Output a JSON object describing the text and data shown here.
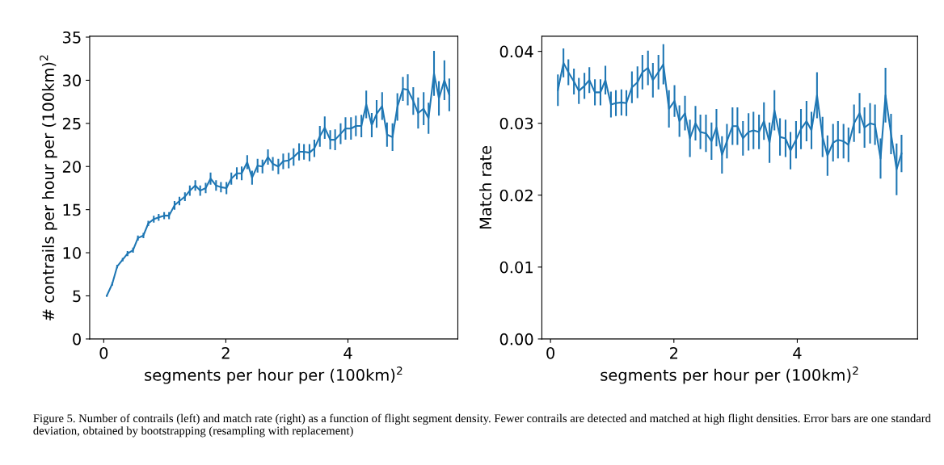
{
  "chart_data": [
    {
      "type": "line",
      "xlabel": "segments per hour per (100km)$^{2}$",
      "ylabel": "# contrails per hour per (100km)$^{2}$",
      "xlim": [
        -0.23,
        5.8
      ],
      "ylim": [
        0,
        35.1
      ],
      "xticks": [
        0,
        2,
        4
      ],
      "yticks": [
        0,
        5,
        10,
        15,
        20,
        25,
        30,
        35
      ],
      "grid": false,
      "marker": "none",
      "line_style": "solid",
      "series": [
        {
          "color": "#1f77b4",
          "x": [
            0.05,
            0.14,
            0.22,
            0.31,
            0.39,
            0.48,
            0.56,
            0.65,
            0.73,
            0.82,
            0.9,
            0.99,
            1.07,
            1.16,
            1.24,
            1.33,
            1.41,
            1.5,
            1.58,
            1.67,
            1.75,
            1.84,
            1.92,
            2.01,
            2.09,
            2.18,
            2.26,
            2.35,
            2.43,
            2.52,
            2.6,
            2.69,
            2.77,
            2.86,
            2.94,
            3.03,
            3.11,
            3.2,
            3.28,
            3.37,
            3.45,
            3.54,
            3.62,
            3.71,
            3.79,
            3.88,
            3.96,
            4.05,
            4.13,
            4.22,
            4.3,
            4.39,
            4.47,
            4.56,
            4.64,
            4.73,
            4.81,
            4.9,
            4.98,
            5.07,
            5.15,
            5.24,
            5.32,
            5.41,
            5.49,
            5.58,
            5.66
          ],
          "values": [
            5.0,
            6.4,
            8.4,
            9.2,
            9.9,
            10.3,
            11.7,
            12.0,
            13.4,
            13.9,
            14.1,
            14.3,
            14.3,
            15.5,
            16.0,
            16.5,
            17.2,
            17.8,
            17.2,
            17.5,
            18.6,
            17.8,
            17.6,
            17.5,
            18.6,
            19.2,
            19.2,
            20.5,
            18.7,
            20.1,
            20.0,
            21.1,
            20.3,
            20.0,
            20.6,
            20.7,
            21.1,
            21.7,
            21.7,
            21.6,
            22.1,
            23.5,
            24.5,
            23.1,
            23.1,
            23.8,
            24.4,
            24.4,
            24.7,
            24.7,
            27.2,
            24.8,
            26.1,
            27.0,
            23.7,
            23.4,
            26.9,
            29.0,
            28.9,
            27.6,
            26.2,
            26.7,
            25.6,
            30.8,
            27.9,
            30.0,
            28.3
          ],
          "errors": [
            0.1,
            0.2,
            0.2,
            0.2,
            0.3,
            0.3,
            0.3,
            0.3,
            0.3,
            0.4,
            0.4,
            0.4,
            0.4,
            0.5,
            0.5,
            0.5,
            0.6,
            0.6,
            0.6,
            0.6,
            0.7,
            0.6,
            0.6,
            0.7,
            0.7,
            0.7,
            0.8,
            0.8,
            0.8,
            0.8,
            0.8,
            0.9,
            0.8,
            0.9,
            0.9,
            0.9,
            1.0,
            1.0,
            0.9,
            1.0,
            1.0,
            1.2,
            1.3,
            1.1,
            1.2,
            1.2,
            1.3,
            1.3,
            1.2,
            1.3,
            1.6,
            1.4,
            1.6,
            1.6,
            1.4,
            1.6,
            1.6,
            1.4,
            1.8,
            1.6,
            1.8,
            1.9,
            1.8,
            2.6,
            2.0,
            2.3,
            1.9
          ]
        }
      ]
    },
    {
      "type": "line",
      "xlabel": "segments per hour per (100km)$^{2}$",
      "ylabel": "Match rate",
      "xlim": [
        -0.14,
        5.95
      ],
      "ylim": [
        0,
        0.0421
      ],
      "xticks": [
        0,
        2,
        4
      ],
      "yticks": [
        {
          "value": 0,
          "label": "0.00"
        },
        0.01,
        0.02,
        0.03,
        0.04
      ],
      "grid": false,
      "marker": "none",
      "line_style": "solid",
      "series": [
        {
          "color": "#1f77b4",
          "x": [
            0.12,
            0.21,
            0.29,
            0.38,
            0.46,
            0.55,
            0.63,
            0.72,
            0.81,
            0.89,
            0.98,
            1.06,
            1.15,
            1.23,
            1.32,
            1.41,
            1.49,
            1.58,
            1.66,
            1.75,
            1.83,
            1.92,
            2.01,
            2.09,
            2.18,
            2.26,
            2.35,
            2.43,
            2.52,
            2.61,
            2.69,
            2.78,
            2.86,
            2.95,
            3.03,
            3.12,
            3.21,
            3.29,
            3.38,
            3.46,
            3.55,
            3.63,
            3.72,
            3.81,
            3.89,
            3.98,
            4.06,
            4.15,
            4.23,
            4.32,
            4.41,
            4.49,
            4.58,
            4.66,
            4.75,
            4.83,
            4.92,
            5.01,
            5.09,
            5.18,
            5.26,
            5.35,
            5.43,
            5.52,
            5.61,
            5.69
          ],
          "values": [
            0.0346,
            0.0384,
            0.0371,
            0.0358,
            0.0345,
            0.0352,
            0.036,
            0.0343,
            0.0343,
            0.036,
            0.0326,
            0.0328,
            0.0329,
            0.0328,
            0.035,
            0.0357,
            0.0371,
            0.0377,
            0.036,
            0.0371,
            0.0382,
            0.032,
            0.0331,
            0.0303,
            0.0314,
            0.0279,
            0.03,
            0.0288,
            0.0286,
            0.0275,
            0.0294,
            0.0256,
            0.0275,
            0.0296,
            0.0296,
            0.0279,
            0.0288,
            0.029,
            0.0288,
            0.0303,
            0.0273,
            0.0318,
            0.0281,
            0.0279,
            0.0262,
            0.0277,
            0.0292,
            0.0303,
            0.029,
            0.0339,
            0.0281,
            0.0255,
            0.0273,
            0.0277,
            0.0275,
            0.027,
            0.03,
            0.0314,
            0.0294,
            0.03,
            0.0298,
            0.0251,
            0.0339,
            0.0285,
            0.0236,
            0.0258
          ],
          "errors": [
            0.0022,
            0.002,
            0.0018,
            0.0018,
            0.0018,
            0.0018,
            0.0018,
            0.0018,
            0.0018,
            0.002,
            0.0018,
            0.0018,
            0.0018,
            0.0018,
            0.0022,
            0.0022,
            0.0024,
            0.0024,
            0.0024,
            0.0024,
            0.0028,
            0.0026,
            0.0022,
            0.0022,
            0.0024,
            0.0026,
            0.0024,
            0.0024,
            0.0026,
            0.0026,
            0.0026,
            0.0026,
            0.0024,
            0.0026,
            0.0026,
            0.0024,
            0.0026,
            0.0026,
            0.0024,
            0.0026,
            0.0028,
            0.0028,
            0.0026,
            0.0026,
            0.0026,
            0.0026,
            0.0028,
            0.0028,
            0.0026,
            0.0032,
            0.0028,
            0.0028,
            0.0026,
            0.0026,
            0.0024,
            0.0024,
            0.0026,
            0.0028,
            0.0028,
            0.0028,
            0.0028,
            0.0028,
            0.0038,
            0.0028,
            0.0036,
            0.0026
          ]
        }
      ]
    },
    {
      "type": "other",
      "annotations": [
        "Figure 5. Number of contrails (left) and match rate (right) as a function of flight segment density. Fewer contrails are detected and matched at high flight densities. Error bars are one standard deviation, obtained by bootstrapping (resampling with replacement)"
      ]
    }
  ]
}
